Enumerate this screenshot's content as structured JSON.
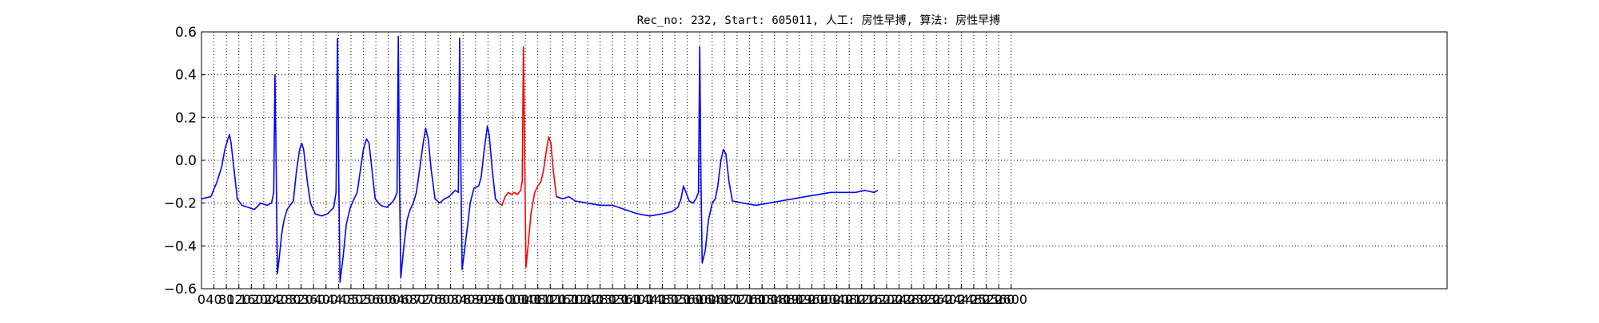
{
  "chart_data": {
    "type": "line",
    "title": "Rec_no: 232, Start: 605011, 人工: 房性早搏, 算法: 房性早搏",
    "xlabel": "",
    "ylabel": "",
    "xlim": [
      0,
      4000
    ],
    "ylim": [
      -0.6,
      0.6
    ],
    "yticks": [
      -0.6,
      -0.4,
      -0.2,
      0.0,
      0.2,
      0.4,
      0.6
    ],
    "ytick_labels": [
      "−0.6",
      "−0.4",
      "−0.2",
      "0.0",
      "0.2",
      "0.4",
      "0.6"
    ],
    "xticks": [
      0,
      40,
      80,
      120,
      160,
      200,
      240,
      280,
      320,
      360,
      400,
      440,
      480,
      520,
      560,
      600,
      640,
      680,
      720,
      760,
      800,
      840,
      880,
      920,
      960,
      1000,
      1040,
      1080,
      1120,
      1160,
      1200,
      1240,
      1280,
      1320,
      1360,
      1400,
      1440,
      1480,
      1520,
      1560,
      1600,
      1640,
      1680,
      1720,
      1760,
      1800,
      1840,
      1880,
      1920,
      1960,
      2000,
      2040,
      2080,
      2120,
      2160,
      2200,
      2240,
      2280,
      2320,
      2360,
      2400,
      2440,
      2480,
      2520,
      2560,
      2600
    ],
    "grid": true,
    "series": [
      {
        "color": "#0000ff",
        "points": [
          [
            0,
            -0.18
          ],
          [
            30,
            -0.17
          ],
          [
            50,
            -0.1
          ],
          [
            65,
            -0.03
          ],
          [
            75,
            0.05
          ],
          [
            85,
            0.1
          ],
          [
            90,
            0.12
          ],
          [
            95,
            0.08
          ],
          [
            105,
            -0.05
          ],
          [
            115,
            -0.18
          ],
          [
            130,
            -0.21
          ],
          [
            150,
            -0.22
          ],
          [
            170,
            -0.23
          ],
          [
            190,
            -0.2
          ],
          [
            210,
            -0.21
          ],
          [
            225,
            -0.2
          ],
          [
            232,
            -0.15
          ],
          [
            236,
            0.4
          ],
          [
            240,
            -0.05
          ],
          [
            244,
            -0.53
          ],
          [
            250,
            -0.45
          ],
          [
            258,
            -0.34
          ],
          [
            265,
            -0.28
          ],
          [
            275,
            -0.23
          ],
          [
            285,
            -0.21
          ],
          [
            295,
            -0.19
          ],
          [
            305,
            -0.05
          ],
          [
            315,
            0.05
          ],
          [
            322,
            0.08
          ],
          [
            328,
            0.05
          ],
          [
            340,
            -0.1
          ],
          [
            350,
            -0.2
          ],
          [
            365,
            -0.25
          ],
          [
            385,
            -0.26
          ],
          [
            405,
            -0.25
          ],
          [
            425,
            -0.22
          ],
          [
            432,
            -0.15
          ],
          [
            437,
            0.57
          ],
          [
            441,
            -0.1
          ],
          [
            445,
            -0.57
          ],
          [
            455,
            -0.45
          ],
          [
            465,
            -0.3
          ],
          [
            478,
            -0.22
          ],
          [
            490,
            -0.18
          ],
          [
            500,
            -0.15
          ],
          [
            510,
            -0.05
          ],
          [
            520,
            0.05
          ],
          [
            530,
            0.1
          ],
          [
            538,
            0.08
          ],
          [
            548,
            -0.05
          ],
          [
            558,
            -0.18
          ],
          [
            575,
            -0.21
          ],
          [
            595,
            -0.22
          ],
          [
            610,
            -0.2
          ],
          [
            620,
            -0.18
          ],
          [
            628,
            -0.15
          ],
          [
            632,
            0.58
          ],
          [
            636,
            -0.1
          ],
          [
            640,
            -0.55
          ],
          [
            650,
            -0.4
          ],
          [
            660,
            -0.28
          ],
          [
            670,
            -0.23
          ],
          [
            680,
            -0.2
          ],
          [
            690,
            -0.15
          ],
          [
            700,
            -0.05
          ],
          [
            712,
            0.08
          ],
          [
            720,
            0.15
          ],
          [
            728,
            0.1
          ],
          [
            738,
            -0.05
          ],
          [
            750,
            -0.18
          ],
          [
            765,
            -0.2
          ],
          [
            780,
            -0.18
          ],
          [
            795,
            -0.17
          ],
          [
            815,
            -0.14
          ],
          [
            825,
            -0.15
          ],
          [
            829,
            0.57
          ],
          [
            833,
            -0.05
          ],
          [
            837,
            -0.51
          ],
          [
            845,
            -0.42
          ],
          [
            855,
            -0.3
          ],
          [
            863,
            -0.2
          ],
          [
            875,
            -0.13
          ],
          [
            890,
            -0.12
          ],
          [
            898,
            -0.08
          ],
          [
            908,
            0.05
          ],
          [
            918,
            0.16
          ],
          [
            924,
            0.12
          ],
          [
            934,
            -0.05
          ],
          [
            944,
            -0.18
          ],
          [
            955,
            -0.2
          ]
        ]
      },
      {
        "color": "#ff0000",
        "points": [
          [
            955,
            -0.2
          ],
          [
            965,
            -0.21
          ],
          [
            975,
            -0.17
          ],
          [
            985,
            -0.15
          ],
          [
            995,
            -0.16
          ],
          [
            1005,
            -0.15
          ],
          [
            1015,
            -0.16
          ],
          [
            1025,
            -0.14
          ],
          [
            1030,
            -0.1
          ],
          [
            1034,
            0.53
          ],
          [
            1038,
            0.0
          ],
          [
            1042,
            -0.5
          ],
          [
            1050,
            -0.38
          ],
          [
            1058,
            -0.25
          ],
          [
            1070,
            -0.15
          ],
          [
            1080,
            -0.12
          ],
          [
            1090,
            -0.1
          ],
          [
            1098,
            -0.05
          ],
          [
            1108,
            0.05
          ],
          [
            1115,
            0.11
          ],
          [
            1122,
            0.08
          ],
          [
            1130,
            -0.05
          ],
          [
            1140,
            -0.17
          ]
        ]
      },
      {
        "color": "#0000ff",
        "points": [
          [
            1140,
            -0.17
          ],
          [
            1160,
            -0.18
          ],
          [
            1180,
            -0.17
          ],
          [
            1200,
            -0.19
          ],
          [
            1240,
            -0.2
          ],
          [
            1280,
            -0.21
          ],
          [
            1320,
            -0.21
          ],
          [
            1360,
            -0.23
          ],
          [
            1400,
            -0.25
          ],
          [
            1440,
            -0.26
          ],
          [
            1480,
            -0.25
          ],
          [
            1510,
            -0.24
          ],
          [
            1530,
            -0.22
          ],
          [
            1540,
            -0.18
          ],
          [
            1548,
            -0.12
          ],
          [
            1556,
            -0.15
          ],
          [
            1566,
            -0.19
          ],
          [
            1578,
            -0.2
          ],
          [
            1588,
            -0.18
          ],
          [
            1596,
            -0.15
          ],
          [
            1600,
            0.53
          ],
          [
            1604,
            -0.1
          ],
          [
            1608,
            -0.48
          ],
          [
            1618,
            -0.42
          ],
          [
            1628,
            -0.28
          ],
          [
            1640,
            -0.2
          ],
          [
            1650,
            -0.18
          ],
          [
            1658,
            -0.12
          ],
          [
            1668,
            0.0
          ],
          [
            1676,
            0.05
          ],
          [
            1684,
            0.03
          ],
          [
            1694,
            -0.1
          ],
          [
            1705,
            -0.19
          ],
          [
            1740,
            -0.2
          ],
          [
            1780,
            -0.21
          ],
          [
            1820,
            -0.2
          ],
          [
            1860,
            -0.19
          ],
          [
            1900,
            -0.18
          ],
          [
            1940,
            -0.17
          ],
          [
            1980,
            -0.16
          ],
          [
            2020,
            -0.15
          ],
          [
            2060,
            -0.15
          ],
          [
            2100,
            -0.15
          ],
          [
            2130,
            -0.14
          ],
          [
            2160,
            -0.15
          ],
          [
            2172,
            -0.14
          ]
        ]
      }
    ]
  }
}
